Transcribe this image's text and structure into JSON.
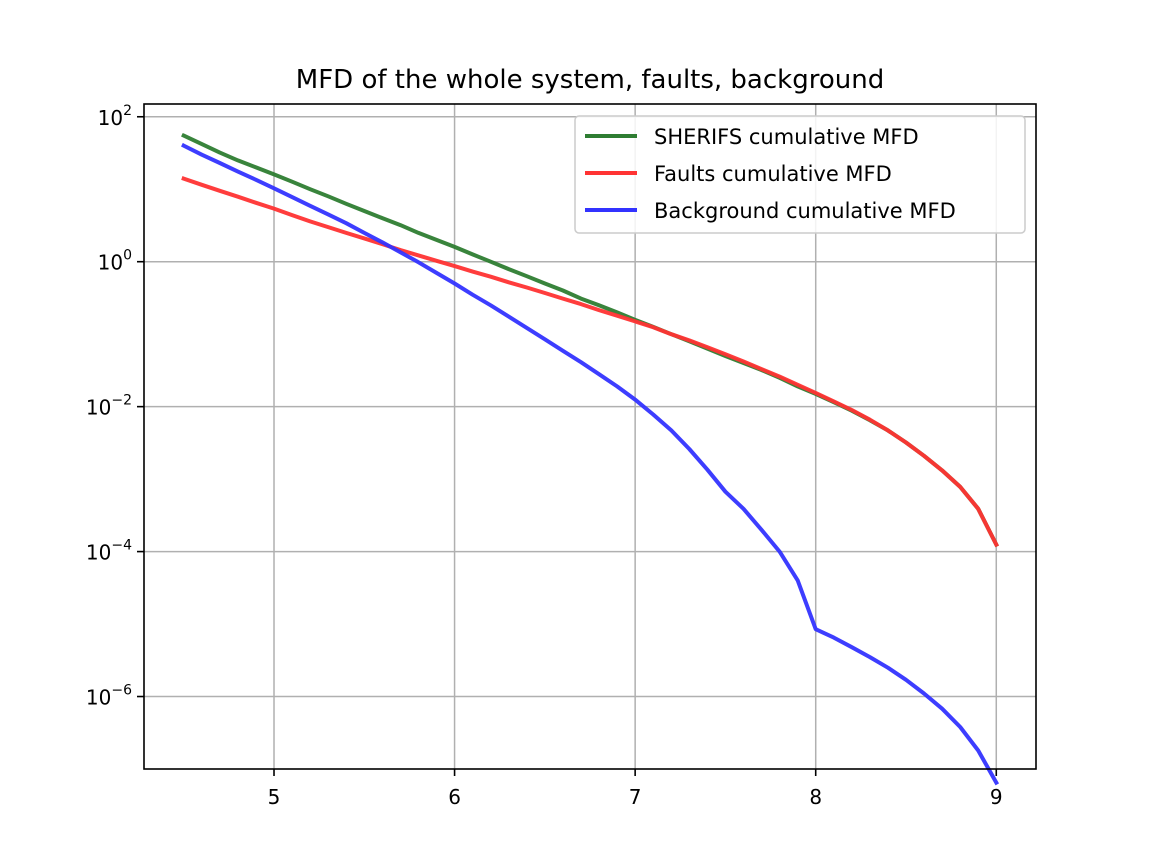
{
  "chart_data": {
    "type": "line",
    "title": "MFD of the whole system, faults, background",
    "xlabel": "",
    "ylabel": "",
    "xlim": [
      4.28,
      9.22
    ],
    "ylim": [
      1e-07,
      150.0
    ],
    "yscale": "log",
    "grid": true,
    "legend_position": "top-right",
    "x_ticks": [
      5,
      6,
      7,
      8,
      9
    ],
    "x_tick_labels": [
      "5",
      "6",
      "7",
      "8",
      "9"
    ],
    "y_ticks": [
      100,
      1,
      0.01,
      0.0001,
      1e-06
    ],
    "y_tick_labels": [
      {
        "base": "10",
        "exp": "2"
      },
      {
        "base": "10",
        "exp": "0"
      },
      {
        "base": "10",
        "exp": "−2"
      },
      {
        "base": "10",
        "exp": "−4"
      },
      {
        "base": "10",
        "exp": "−6"
      }
    ],
    "x": [
      4.5,
      4.6,
      4.7,
      4.8,
      4.9,
      5.0,
      5.1,
      5.2,
      5.3,
      5.4,
      5.5,
      5.6,
      5.7,
      5.8,
      5.9,
      6.0,
      6.1,
      6.2,
      6.3,
      6.4,
      6.5,
      6.6,
      6.7,
      6.8,
      6.9,
      7.0,
      7.1,
      7.2,
      7.3,
      7.4,
      7.5,
      7.6,
      7.7,
      7.8,
      7.9,
      8.0,
      8.1,
      8.2,
      8.3,
      8.4,
      8.5,
      8.6,
      8.7,
      8.8,
      8.9,
      9.0
    ],
    "series": [
      {
        "name": "SHERIFS cumulative MFD",
        "color": "#2e7d32",
        "values": [
          55,
          42,
          32,
          25,
          20,
          16,
          12.7,
          10,
          8,
          6.3,
          5,
          4,
          3.2,
          2.5,
          2.0,
          1.6,
          1.26,
          1.0,
          0.79,
          0.63,
          0.5,
          0.4,
          0.31,
          0.25,
          0.2,
          0.158,
          0.126,
          0.1,
          0.08,
          0.063,
          0.05,
          0.04,
          0.032,
          0.025,
          0.019,
          0.015,
          0.0115,
          0.0088,
          0.0065,
          0.0047,
          0.0032,
          0.0021,
          0.00132,
          0.00078,
          0.00039,
          0.000125
        ]
      },
      {
        "name": "Faults cumulative MFD",
        "color": "#ff3333",
        "values": [
          14,
          11.5,
          9.5,
          7.9,
          6.5,
          5.4,
          4.4,
          3.6,
          3.0,
          2.5,
          2.1,
          1.75,
          1.45,
          1.22,
          1.03,
          0.87,
          0.73,
          0.62,
          0.52,
          0.44,
          0.37,
          0.31,
          0.26,
          0.215,
          0.18,
          0.15,
          0.125,
          0.1,
          0.082,
          0.066,
          0.053,
          0.042,
          0.033,
          0.026,
          0.02,
          0.0155,
          0.0118,
          0.009,
          0.0066,
          0.0047,
          0.0032,
          0.0021,
          0.00132,
          0.00078,
          0.00039,
          0.000125
        ]
      },
      {
        "name": "Background cumulative MFD",
        "color": "#3333ff",
        "values": [
          40,
          30,
          23,
          17.5,
          13.5,
          10.3,
          7.8,
          5.9,
          4.5,
          3.4,
          2.5,
          1.85,
          1.35,
          0.98,
          0.7,
          0.5,
          0.35,
          0.25,
          0.175,
          0.122,
          0.085,
          0.059,
          0.041,
          0.028,
          0.019,
          0.0125,
          0.0078,
          0.0047,
          0.0026,
          0.00135,
          0.00067,
          0.00039,
          0.0002,
          0.0001,
          4e-05,
          8.5e-06,
          6.5e-06,
          4.8e-06,
          3.5e-06,
          2.5e-06,
          1.7e-06,
          1.1e-06,
          6.8e-07,
          3.8e-07,
          1.8e-07,
          6.5e-08
        ]
      }
    ]
  }
}
